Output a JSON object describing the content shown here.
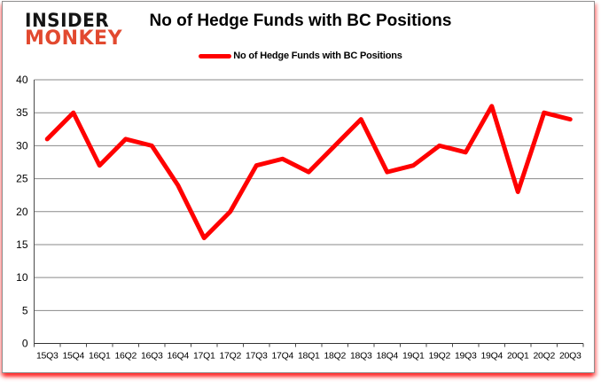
{
  "logo": {
    "line1": "INSIDER",
    "line2": "MONKEY"
  },
  "header": {
    "title": "No of Hedge Funds with BC Positions"
  },
  "legend": {
    "label": "No of Hedge Funds with BC Positions"
  },
  "colors": {
    "series": "#ff0000",
    "grid": "#8a8a8a",
    "axis": "#4a4a4a",
    "zero_axis": "#333333",
    "tick_text": "#000000",
    "logo_black": "#151515",
    "logo_red": "#e2492f"
  },
  "chart_data": {
    "type": "line",
    "title": "No of Hedge Funds with BC Positions",
    "categories": [
      "15Q3",
      "15Q4",
      "16Q1",
      "16Q2",
      "16Q3",
      "16Q4",
      "17Q1",
      "17Q2",
      "17Q3",
      "17Q4",
      "18Q1",
      "18Q2",
      "18Q3",
      "18Q4",
      "19Q1",
      "19Q2",
      "19Q3",
      "19Q4",
      "20Q1",
      "20Q2",
      "20Q3"
    ],
    "series": [
      {
        "name": "No of Hedge Funds with BC Positions",
        "values": [
          31,
          35,
          27,
          31,
          30,
          24,
          16,
          20,
          27,
          28,
          26,
          30,
          34,
          26,
          27,
          30,
          29,
          36,
          23,
          35,
          34
        ]
      }
    ],
    "xlabel": "",
    "ylabel": "",
    "ylim": [
      0,
      40
    ],
    "yticks": [
      0,
      5,
      10,
      15,
      20,
      25,
      30,
      35,
      40
    ],
    "grid": "horizontal",
    "legend_position": "top-center"
  }
}
